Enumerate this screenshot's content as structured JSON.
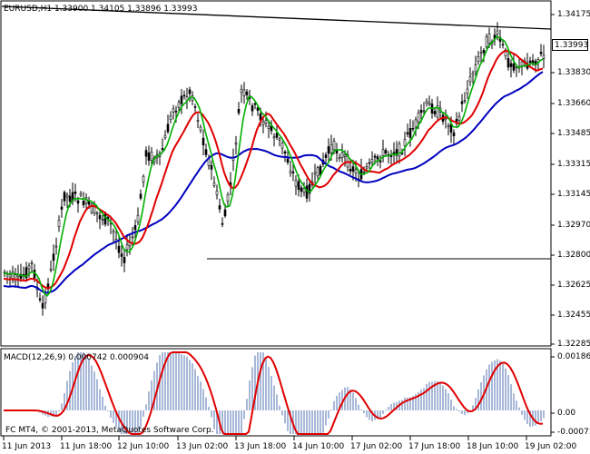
{
  "main_chart": {
    "symbol_line": "EURUSD,H1  1.33900 1.34105 1.33896 1.33993",
    "current_price": "1.33993",
    "price_axis": [
      "1.34175",
      "1.33993",
      "1.33830",
      "1.33660",
      "1.33485",
      "1.33315",
      "1.33145",
      "1.32970",
      "1.32800",
      "1.32625",
      "1.32455",
      "1.32285"
    ]
  },
  "indicator": {
    "label": "MACD(12,26,9) 0.000742 0.000904",
    "axis": [
      "0.001864",
      "0.00",
      "-0.000713"
    ]
  },
  "time_axis": [
    "11 Jun 2013",
    "11 Jun 18:00",
    "12 Jun 10:00",
    "13 Jun 02:00",
    "13 Jun 18:00",
    "14 Jun 10:00",
    "17 Jun 02:00",
    "17 Jun 18:00",
    "18 Jun 10:00",
    "19 Jun 02:00"
  ],
  "copyright": "FC MT4, © 2001-2013, MetaQuotes Software Corp.",
  "colors": {
    "candle": "#000000",
    "ma_fast": "#00b000",
    "ma_mid": "#e00000",
    "ma_slow": "#0000c0",
    "macd_hist": "#a8b8d8",
    "macd_signal": "#e00000"
  }
}
